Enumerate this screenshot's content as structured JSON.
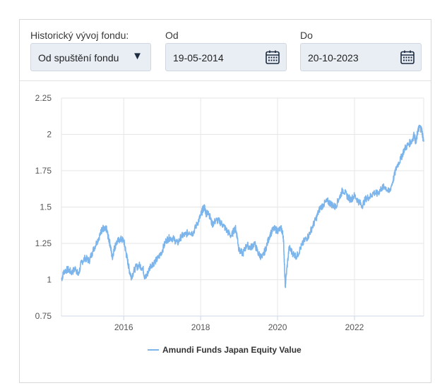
{
  "controls": {
    "history_label": "Historický vývoj fondu:",
    "history_value": "Od spuštění fondu",
    "from_label": "Od",
    "from_value": "19-05-2014",
    "to_label": "Do",
    "to_value": "20-10-2023"
  },
  "chart_data": {
    "type": "line",
    "title": "",
    "xlabel": "",
    "ylabel": "",
    "x_tick_labels": [
      "2016",
      "2018",
      "2020",
      "2022"
    ],
    "x_ticks": [
      2016,
      2018,
      2020,
      2022
    ],
    "y_tick_labels": [
      "0.75",
      "1",
      "1.25",
      "1.5",
      "1.75",
      "2",
      "2.25"
    ],
    "y_ticks": [
      0.75,
      1,
      1.25,
      1.5,
      1.75,
      2,
      2.25
    ],
    "ylim": [
      0.75,
      2.25
    ],
    "xlim": [
      2014.38,
      2023.8
    ],
    "grid": true,
    "legend_position": "bottom",
    "line_color": "#7cb5ec",
    "series": [
      {
        "name": "Amundi Funds Japan Equity Value",
        "x": [
          2014.38,
          2014.45,
          2014.55,
          2014.65,
          2014.75,
          2014.82,
          2014.9,
          2015.0,
          2015.1,
          2015.2,
          2015.3,
          2015.4,
          2015.45,
          2015.5,
          2015.55,
          2015.6,
          2015.65,
          2015.7,
          2015.75,
          2015.8,
          2015.9,
          2016.0,
          2016.05,
          2016.1,
          2016.15,
          2016.2,
          2016.3,
          2016.4,
          2016.5,
          2016.55,
          2016.6,
          2016.7,
          2016.8,
          2016.9,
          2017.0,
          2017.1,
          2017.2,
          2017.3,
          2017.4,
          2017.5,
          2017.6,
          2017.7,
          2017.8,
          2017.9,
          2018.0,
          2018.05,
          2018.1,
          2018.15,
          2018.2,
          2018.3,
          2018.4,
          2018.5,
          2018.6,
          2018.7,
          2018.8,
          2018.9,
          2018.95,
          2019.0,
          2019.1,
          2019.2,
          2019.3,
          2019.4,
          2019.5,
          2019.6,
          2019.7,
          2019.8,
          2019.9,
          2020.0,
          2020.1,
          2020.15,
          2020.18,
          2020.2,
          2020.22,
          2020.3,
          2020.4,
          2020.5,
          2020.6,
          2020.7,
          2020.8,
          2020.9,
          2021.0,
          2021.1,
          2021.2,
          2021.3,
          2021.4,
          2021.5,
          2021.6,
          2021.7,
          2021.8,
          2021.9,
          2022.0,
          2022.1,
          2022.2,
          2022.3,
          2022.4,
          2022.5,
          2022.6,
          2022.7,
          2022.8,
          2022.9,
          2023.0,
          2023.1,
          2023.2,
          2023.3,
          2023.4,
          2023.5,
          2023.55,
          2023.6,
          2023.65,
          2023.7,
          2023.75,
          2023.8
        ],
        "values": [
          1.0,
          1.06,
          1.07,
          1.05,
          1.08,
          1.03,
          1.12,
          1.15,
          1.13,
          1.2,
          1.26,
          1.32,
          1.36,
          1.34,
          1.35,
          1.29,
          1.24,
          1.15,
          1.21,
          1.25,
          1.28,
          1.27,
          1.2,
          1.13,
          1.06,
          1.02,
          1.08,
          1.1,
          1.08,
          1.01,
          1.03,
          1.1,
          1.12,
          1.15,
          1.2,
          1.27,
          1.29,
          1.28,
          1.25,
          1.3,
          1.31,
          1.33,
          1.32,
          1.38,
          1.44,
          1.48,
          1.5,
          1.45,
          1.47,
          1.38,
          1.41,
          1.4,
          1.37,
          1.33,
          1.3,
          1.36,
          1.3,
          1.2,
          1.18,
          1.24,
          1.22,
          1.25,
          1.18,
          1.15,
          1.22,
          1.31,
          1.35,
          1.34,
          1.35,
          1.3,
          1.1,
          0.95,
          1.02,
          1.22,
          1.18,
          1.16,
          1.22,
          1.27,
          1.3,
          1.36,
          1.42,
          1.49,
          1.52,
          1.54,
          1.52,
          1.5,
          1.56,
          1.62,
          1.58,
          1.55,
          1.58,
          1.54,
          1.51,
          1.56,
          1.57,
          1.6,
          1.59,
          1.63,
          1.64,
          1.6,
          1.68,
          1.78,
          1.83,
          1.9,
          1.93,
          1.96,
          2.0,
          1.94,
          2.03,
          2.05,
          2.03,
          1.95
        ]
      }
    ]
  }
}
